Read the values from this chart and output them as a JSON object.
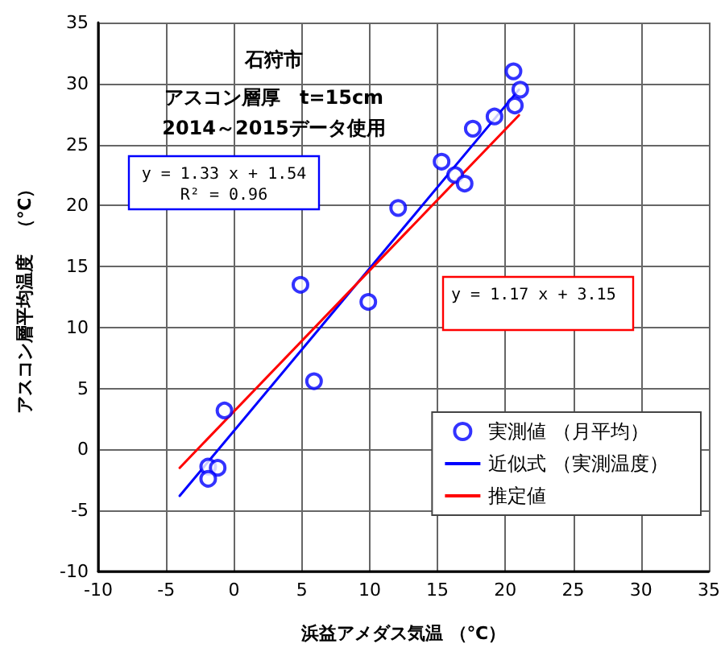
{
  "chart_data": {
    "type": "scatter",
    "title": "石狩市",
    "subtitle": "アスコン層厚　t=15cm\n2014～2015データ使用",
    "xlabel": "浜益アメダス気温 （℃）",
    "ylabel": "アスコン層平均温度　（℃）",
    "xlim": [
      -10,
      35
    ],
    "xticks": [
      -10,
      -5,
      0,
      5,
      10,
      15,
      20,
      25,
      30,
      35
    ],
    "ylim": [
      -10,
      35
    ],
    "yticks": [
      -10,
      -5,
      0,
      5,
      10,
      15,
      20,
      25,
      30,
      35
    ],
    "grid": true,
    "legend": "bottom right",
    "annotations": [
      "y = 1.33 x + 1.54\nR² = 0.96",
      "y = 1.17 x + 3.15"
    ],
    "series": [
      {
        "name": "実測値 （月平均）",
        "type": "scatter",
        "marker": "circle",
        "color": "#0000ff",
        "x": [
          20.6,
          21.1,
          20.7,
          19.2,
          17.6,
          15.3,
          16.3,
          17.0,
          12.1,
          4.9,
          9.9,
          5.9,
          -0.7,
          -1.9,
          -1.2,
          -1.9
        ],
        "values": [
          31.0,
          29.5,
          28.2,
          27.3,
          26.3,
          23.6,
          22.5,
          21.8,
          19.8,
          13.5,
          12.1,
          5.6,
          3.2,
          -1.4,
          -1.5,
          -2.4
        ]
      },
      {
        "name": "近似式 （実測温度）",
        "type": "line",
        "marker": "none",
        "color": "#0000ff",
        "x": [
          -4,
          21
        ],
        "values": [
          -3.8,
          29.5
        ]
      },
      {
        "name": "推定値",
        "type": "line",
        "marker": "none",
        "color": "#ff0000",
        "x": [
          -4,
          21
        ],
        "values": [
          -1.5,
          27.4
        ]
      }
    ]
  }
}
